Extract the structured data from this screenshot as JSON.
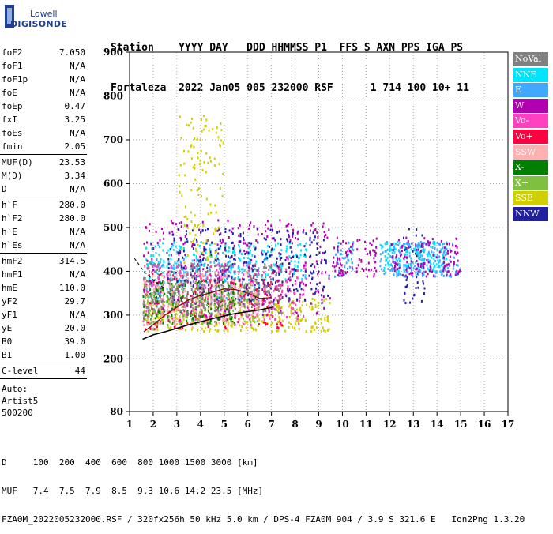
{
  "logo": {
    "line1": "Lowell",
    "line2": "DIGISONDE"
  },
  "header": {
    "row1": "Station    YYYY DAY   DDD HHMMSS P1  FFS S AXN PPS IGA PS",
    "row2": "Fortaleza  2022 Jan05 005 232000 RSF      1 714 100 10+ 11"
  },
  "params": [
    [
      {
        "k": "foF2",
        "v": "7.050"
      },
      {
        "k": "foF1",
        "v": "N/A"
      },
      {
        "k": "foF1p",
        "v": "N/A"
      },
      {
        "k": "foE",
        "v": "N/A"
      },
      {
        "k": "foEp",
        "v": "0.47"
      },
      {
        "k": "fxI",
        "v": "3.25"
      },
      {
        "k": "foEs",
        "v": "N/A"
      },
      {
        "k": "fmin",
        "v": "2.05"
      }
    ],
    [
      {
        "k": "MUF(D)",
        "v": "23.53"
      },
      {
        "k": "M(D)",
        "v": "3.34"
      },
      {
        "k": "D",
        "v": "N/A"
      }
    ],
    [
      {
        "k": "h`F",
        "v": "280.0"
      },
      {
        "k": "h`F2",
        "v": "280.0"
      },
      {
        "k": "h`E",
        "v": "N/A"
      },
      {
        "k": "h`Es",
        "v": "N/A"
      }
    ],
    [
      {
        "k": "hmF2",
        "v": "314.5"
      },
      {
        "k": "hmF1",
        "v": "N/A"
      },
      {
        "k": "hmE",
        "v": "110.0"
      },
      {
        "k": "yF2",
        "v": "29.7"
      },
      {
        "k": "yF1",
        "v": "N/A"
      },
      {
        "k": "yE",
        "v": "20.0"
      },
      {
        "k": "B0",
        "v": "39.0"
      },
      {
        "k": "B1",
        "v": "1.00"
      }
    ],
    [
      {
        "k": "C-level",
        "v": "44"
      }
    ]
  ],
  "auto": [
    "Auto:",
    "Artist5",
    "500200"
  ],
  "legend": [
    {
      "label": "NoVal",
      "color": "#808080"
    },
    {
      "label": "NNE",
      "color": "#00e5ff"
    },
    {
      "label": "E",
      "color": "#40a8ff"
    },
    {
      "label": "W",
      "color": "#b000b0"
    },
    {
      "label": "Vo-",
      "color": "#ff40c0"
    },
    {
      "label": "Vo+",
      "color": "#ff0040"
    },
    {
      "label": "SSW",
      "color": "#ffb0b0"
    },
    {
      "label": "X-",
      "color": "#008000"
    },
    {
      "label": "X+",
      "color": "#80c040"
    },
    {
      "label": "SSE",
      "color": "#d0d000"
    },
    {
      "label": "NNW",
      "color": "#2020a0"
    }
  ],
  "chart_data": {
    "type": "scatter",
    "title": "",
    "xlabel": "",
    "ylabel": "",
    "xlim": [
      1,
      17
    ],
    "ylim": [
      80,
      900
    ],
    "x_ticks": [
      1,
      2,
      3,
      4,
      5,
      6,
      7,
      8,
      9,
      10,
      11,
      12,
      13,
      14,
      15,
      16,
      17
    ],
    "y_ticks": [
      80,
      200,
      300,
      400,
      500,
      600,
      700,
      800,
      900
    ],
    "grid": true,
    "profile_line": {
      "x": [
        1.55,
        2.0,
        2.5,
        3.0,
        3.5,
        4.0,
        4.5,
        5.0,
        5.5,
        6.0,
        6.5,
        7.05
      ],
      "y": [
        245,
        255,
        262,
        270,
        278,
        285,
        292,
        298,
        304,
        308,
        312,
        318
      ]
    },
    "trace_line": {
      "x": [
        1.6,
        2.0,
        2.5,
        3.0,
        3.5,
        4.0,
        4.5,
        5.0,
        5.5,
        6.0,
        6.5,
        7.0
      ],
      "y": [
        262,
        278,
        300,
        318,
        335,
        345,
        352,
        360,
        358,
        350,
        338,
        340
      ]
    },
    "extrapolation": {
      "x": [
        1.2,
        1.6,
        2.0,
        2.5
      ],
      "y": [
        430,
        400,
        380,
        360
      ]
    },
    "point_groups": [
      {
        "color": "#40a8ff",
        "cx": [
          2,
          3,
          4,
          5,
          6
        ],
        "ylo": 330,
        "yhi": 430
      },
      {
        "color": "#00e5ff",
        "cx": [
          2,
          3,
          4,
          5,
          6,
          7,
          8
        ],
        "ylo": 380,
        "yhi": 470
      },
      {
        "color": "#d0d000",
        "cx": [
          2,
          3,
          4,
          5,
          6,
          7,
          8,
          9
        ],
        "ylo": 265,
        "yhi": 340
      },
      {
        "color": "#ff0040",
        "cx": [
          2,
          3,
          4,
          5,
          6,
          7
        ],
        "ylo": 270,
        "yhi": 400
      },
      {
        "color": "#ff40c0",
        "cx": [
          2,
          3,
          4,
          5,
          6,
          7,
          8
        ],
        "ylo": 280,
        "yhi": 420
      },
      {
        "color": "#b000b0",
        "cx": [
          2,
          3,
          4,
          5,
          6,
          7,
          8,
          9
        ],
        "ylo": 300,
        "yhi": 520
      },
      {
        "color": "#2020a0",
        "cx": [
          3,
          4,
          5,
          6,
          7,
          8,
          9,
          13
        ],
        "ylo": 330,
        "yhi": 500
      },
      {
        "color": "#008000",
        "cx": [
          2,
          3,
          4,
          5
        ],
        "ylo": 280,
        "yhi": 380
      },
      {
        "color": "#80c040",
        "cx": [
          2,
          3,
          4,
          5,
          6
        ],
        "ylo": 280,
        "yhi": 380
      },
      {
        "color": "#ffb0b0",
        "cx": [
          2,
          3,
          4,
          5,
          6
        ],
        "ylo": 280,
        "yhi": 400
      },
      {
        "color": "#d0d000",
        "cx": [
          3.5,
          4,
          4.5
        ],
        "ylo": 420,
        "yhi": 760
      },
      {
        "color": "#808080",
        "cx": [
          2,
          3,
          4,
          5,
          6,
          7
        ],
        "ylo": 300,
        "yhi": 420
      },
      {
        "color": "#40a8ff",
        "cx": [
          10,
          12,
          12.5,
          13,
          13.5,
          14,
          14.5
        ],
        "ylo": 390,
        "yhi": 470
      },
      {
        "color": "#00e5ff",
        "cx": [
          12,
          13,
          14
        ],
        "ylo": 400,
        "yhi": 470
      },
      {
        "color": "#b000b0",
        "cx": [
          10,
          11,
          12.5,
          13.5,
          14.5
        ],
        "ylo": 390,
        "yhi": 480
      }
    ]
  },
  "footer": {
    "line1": "D     100  200  400  600  800 1000 1500 3000 [km]",
    "line2": "MUF   7.4  7.5  7.9  8.5  9.3 10.6 14.2 23.5 [MHz]",
    "line3": "FZA0M_2022005232000.RSF / 320fx256h 50 kHz 5.0 km / DPS-4 FZA0M 904 / 3.9 S 321.6 E   Ion2Png 1.3.20"
  }
}
